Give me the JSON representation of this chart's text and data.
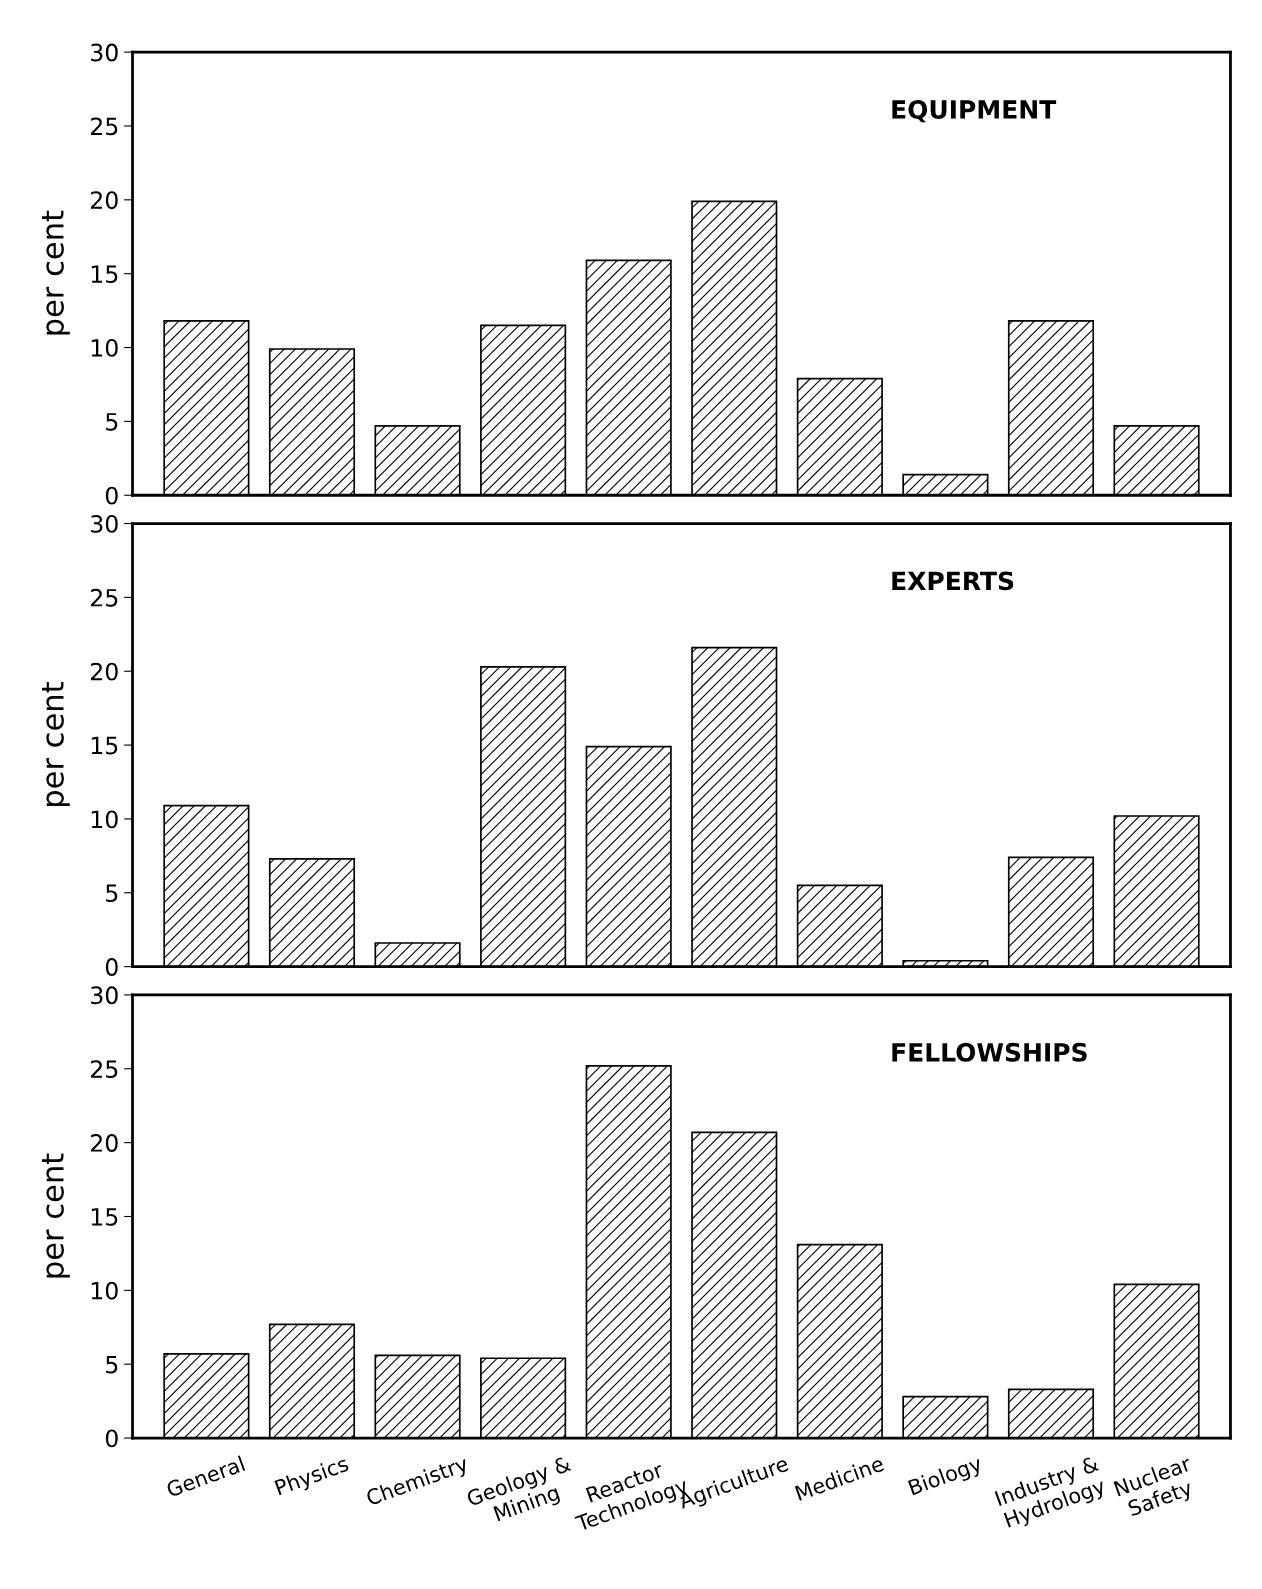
{
  "chart_data": [
    {
      "type": "bar",
      "title": "EQUIPMENT",
      "ylabel": "per cent",
      "categories": [
        null,
        null,
        null,
        null,
        null,
        null,
        null,
        null,
        null,
        null
      ],
      "values": [
        11.8,
        9.9,
        4.7,
        11.5,
        15.9,
        19.9,
        7.9,
        1.4,
        11.8,
        4.7
      ],
      "color": "#000000",
      "ylim": [
        0,
        30
      ],
      "yticks": [
        0,
        5,
        10,
        15,
        20,
        25,
        30
      ],
      "tick_labels": "y"
    },
    {
      "type": "bar",
      "title": "EXPERTS",
      "ylabel": "per cent",
      "categories": [
        null,
        null,
        null,
        null,
        null,
        null,
        null,
        null,
        null,
        null
      ],
      "values": [
        10.9,
        7.3,
        1.6,
        20.3,
        14.9,
        21.6,
        5.5,
        0.4,
        7.4,
        10.2
      ],
      "color": "#000000",
      "ylim": [
        0,
        30
      ],
      "yticks": [
        0,
        5,
        10,
        15,
        20,
        25,
        30
      ],
      "tick_labels": "y"
    },
    {
      "type": "bar",
      "title": "FELLOWSHIPS",
      "ylabel": "per cent",
      "categories": [
        "General",
        "Physics",
        "Chemistry",
        "Geology &\nMining",
        "Reactor\nTechnology",
        "Agriculture",
        "Medicine",
        "Biology",
        "Industry &\nHydrology",
        "Nuclear\nSafety"
      ],
      "values": [
        5.7,
        7.7,
        5.6,
        5.4,
        25.2,
        20.7,
        13.1,
        2.8,
        3.3,
        10.4
      ],
      "color": "#000000",
      "ylim": [
        0,
        30
      ],
      "yticks": [
        0,
        5,
        10,
        15,
        20,
        25,
        30
      ]
    }
  ]
}
